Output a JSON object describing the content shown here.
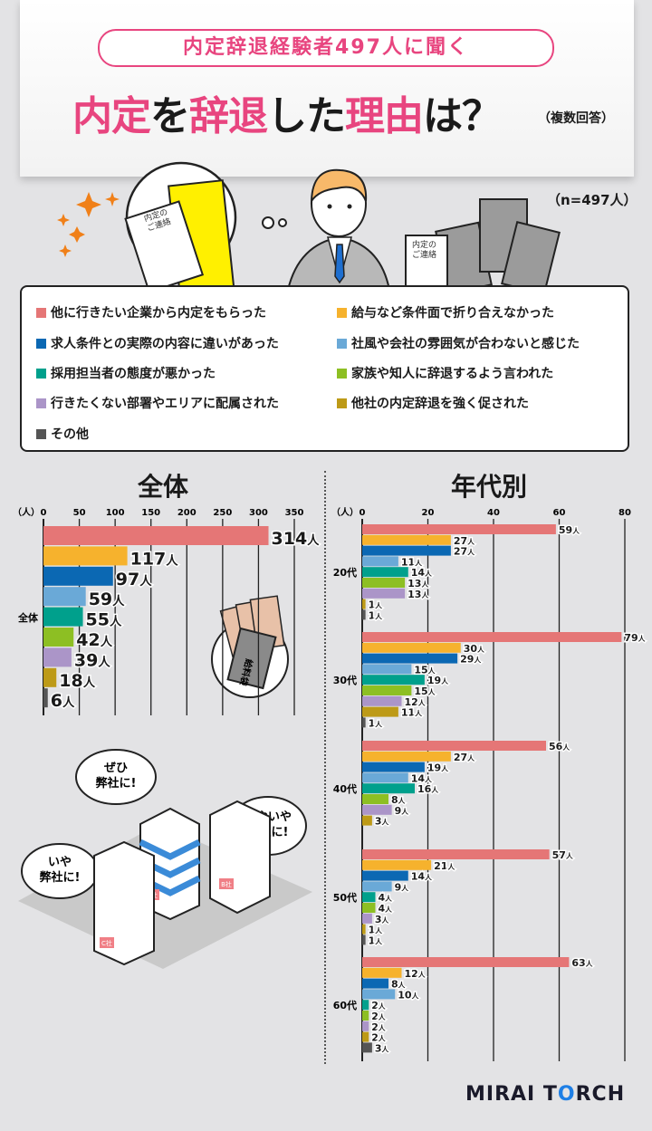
{
  "header": {
    "subtitle": "内定辞退経験者497人に聞く",
    "title_parts": [
      "内定",
      "を",
      "辞退",
      "した",
      "理由",
      "は？"
    ],
    "multiple_answers": "（複数回答）",
    "sample_size": "（n=497人）",
    "illustration_doc_text": "内定の\nご連絡"
  },
  "colors": {
    "accent": "#e8457f",
    "background": "#e3e3e5"
  },
  "legend": [
    {
      "label": "他に行きたい企業から内定をもらった",
      "color": "#e57676"
    },
    {
      "label": "給与など条件面で折り合えなかった",
      "color": "#f6b22d"
    },
    {
      "label": "求人条件との実際の内容に違いがあった",
      "color": "#0b68b3"
    },
    {
      "label": "社風や会社の雰囲気が合わないと感じた",
      "color": "#6aa9d7"
    },
    {
      "label": "採用担当者の態度が悪かった",
      "color": "#00a08c"
    },
    {
      "label": "家族や知人に辞退するよう言われた",
      "color": "#8dbf23"
    },
    {
      "label": "行きたくない部署やエリアに配属された",
      "color": "#ab95c8"
    },
    {
      "label": "他社の内定辞退を強く促された",
      "color": "#bd9a17"
    },
    {
      "label": "その他",
      "color": "#555555"
    }
  ],
  "chart_data": [
    {
      "type": "bar",
      "orientation": "horizontal",
      "title": "全体",
      "unit_label": "（人）",
      "value_suffix": "人",
      "categories": [
        "全体"
      ],
      "xlim": [
        0,
        350
      ],
      "xticks": [
        0,
        50,
        100,
        150,
        200,
        250,
        300,
        350
      ],
      "grid": true,
      "series": [
        {
          "name": "他に行きたい企業から内定をもらった",
          "values": [
            314
          ]
        },
        {
          "name": "給与など条件面で折り合えなかった",
          "values": [
            117
          ]
        },
        {
          "name": "求人条件との実際の内容に違いがあった",
          "values": [
            97
          ]
        },
        {
          "name": "社風や会社の雰囲気が合わないと感じた",
          "values": [
            59
          ]
        },
        {
          "name": "採用担当者の態度が悪かった",
          "values": [
            55
          ]
        },
        {
          "name": "家族や知人に辞退するよう言われた",
          "values": [
            42
          ]
        },
        {
          "name": "行きたくない部署やエリアに配属された",
          "values": [
            39
          ]
        },
        {
          "name": "他社の内定辞退を強く促された",
          "values": [
            18
          ]
        },
        {
          "name": "その他",
          "values": [
            6
          ]
        }
      ]
    },
    {
      "type": "bar",
      "orientation": "horizontal",
      "title": "年代別",
      "unit_label": "（人）",
      "value_suffix": "人",
      "categories": [
        "20代",
        "30代",
        "40代",
        "50代",
        "60代"
      ],
      "xlim": [
        0,
        80
      ],
      "xticks": [
        0,
        20,
        40,
        60,
        80
      ],
      "grid": true,
      "series": [
        {
          "name": "他に行きたい企業から内定をもらった",
          "values": [
            59,
            79,
            56,
            57,
            63
          ]
        },
        {
          "name": "給与など条件面で折り合えなかった",
          "values": [
            27,
            30,
            27,
            21,
            12
          ]
        },
        {
          "name": "求人条件との実際の内容に違いがあった",
          "values": [
            27,
            29,
            19,
            14,
            8
          ]
        },
        {
          "name": "社風や会社の雰囲気が合わないと感じた",
          "values": [
            11,
            15,
            14,
            9,
            10
          ]
        },
        {
          "name": "採用担当者の態度が悪かった",
          "values": [
            14,
            19,
            16,
            4,
            2
          ]
        },
        {
          "name": "家族や知人に辞退するよう言われた",
          "values": [
            13,
            15,
            8,
            4,
            2
          ]
        },
        {
          "name": "行きたくない部署やエリアに配属された",
          "values": [
            13,
            12,
            9,
            3,
            2
          ]
        },
        {
          "name": "他社の内定辞退を強く促された",
          "values": [
            1,
            11,
            3,
            1,
            2
          ]
        },
        {
          "name": "その他",
          "values": [
            1,
            1,
            null,
            1,
            3
          ]
        }
      ]
    }
  ],
  "illustration": {
    "money_envelope": "給料袋",
    "bubbles": [
      "ぜひ\n弊社に!",
      "いやいや\n弊社に!",
      "いや\n弊社に!"
    ],
    "buildings": [
      "A社",
      "B社",
      "C社"
    ]
  },
  "logo": {
    "left": "MIRAI T",
    "o": "O",
    "right": "RCH"
  }
}
